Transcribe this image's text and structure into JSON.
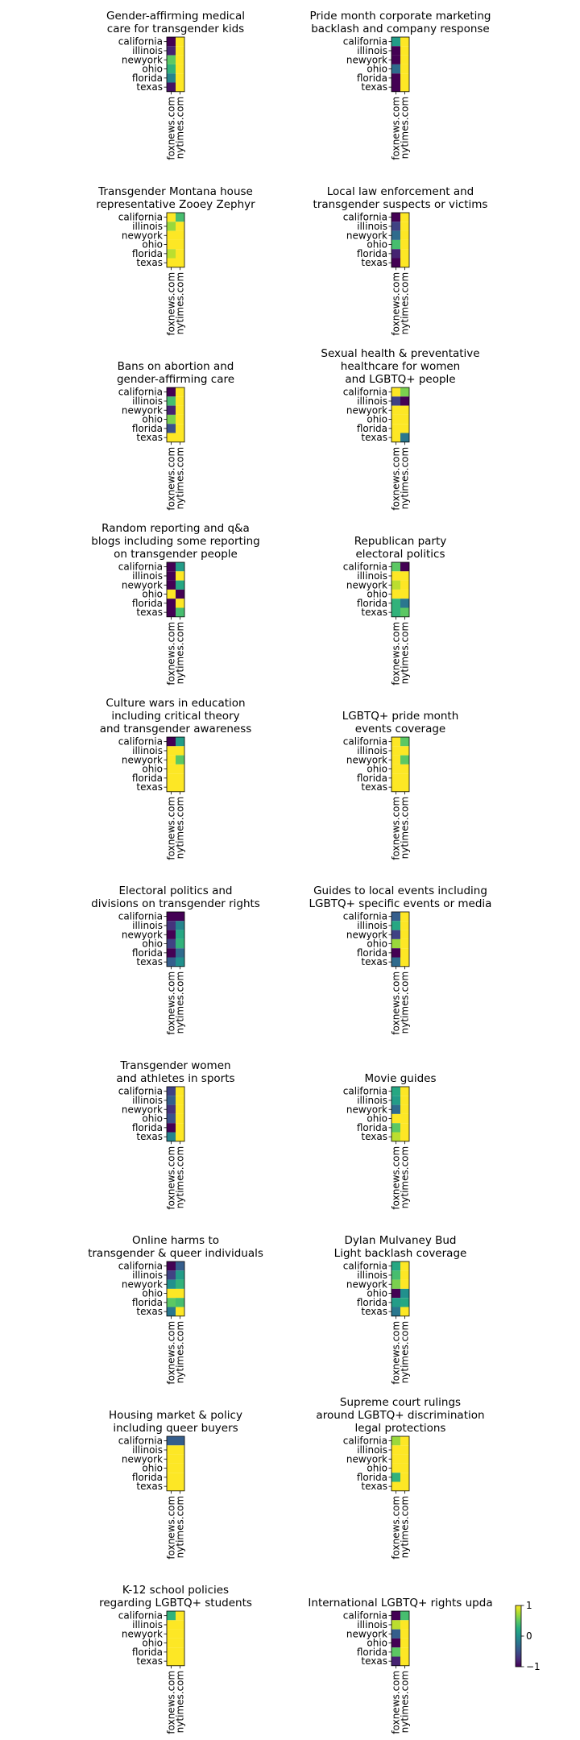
{
  "colorbar": {
    "ticks": [
      1,
      0,
      -1
    ],
    "tick_labels": [
      "1",
      "0",
      "−1"
    ],
    "colormap": "viridis"
  },
  "chart_data": [
    {
      "type": "heatmap",
      "title": [
        "Gender-affirming medical",
        "care for transgender kids"
      ],
      "rows": [
        "california",
        "illinois",
        "newyork",
        "ohio",
        "florida",
        "texas"
      ],
      "columns": [
        "foxnews.com",
        "nytimes.com"
      ],
      "values": [
        [
          -1,
          1
        ],
        [
          -0.8,
          1
        ],
        [
          0.5,
          1
        ],
        [
          0.3,
          1
        ],
        [
          -0.1,
          1
        ],
        [
          -0.9,
          1
        ]
      ],
      "vmin": -1,
      "vmax": 1
    },
    {
      "type": "heatmap",
      "title": [
        "Pride month corporate marketing",
        "backlash and company response"
      ],
      "rows": [
        "california",
        "illinois",
        "newyork",
        "ohio",
        "florida",
        "texas"
      ],
      "columns": [
        "foxnews.com",
        "nytimes.com"
      ],
      "values": [
        [
          0.1,
          1
        ],
        [
          -1,
          1
        ],
        [
          -1,
          1
        ],
        [
          -0.3,
          1
        ],
        [
          -1,
          1
        ],
        [
          -1,
          1
        ]
      ],
      "vmin": -1,
      "vmax": 1
    },
    {
      "type": "heatmap",
      "title": [
        "Transgender Montana house",
        "representative Zooey Zephyr"
      ],
      "rows": [
        "california",
        "illinois",
        "newyork",
        "ohio",
        "florida",
        "texas"
      ],
      "columns": [
        "foxnews.com",
        "nytimes.com"
      ],
      "values": [
        [
          1,
          0.4
        ],
        [
          0.7,
          1
        ],
        [
          1,
          1
        ],
        [
          1,
          1
        ],
        [
          0.8,
          1
        ],
        [
          1,
          1
        ]
      ],
      "vmin": -1,
      "vmax": 1
    },
    {
      "type": "heatmap",
      "title": [
        "Local law enforcement and",
        "transgender suspects or victims"
      ],
      "rows": [
        "california",
        "illinois",
        "newyork",
        "ohio",
        "florida",
        "texas"
      ],
      "columns": [
        "foxnews.com",
        "nytimes.com"
      ],
      "values": [
        [
          -1,
          1
        ],
        [
          -0.6,
          1
        ],
        [
          -0.3,
          1
        ],
        [
          0.4,
          1
        ],
        [
          -0.8,
          1
        ],
        [
          -1,
          1
        ]
      ],
      "vmin": -1,
      "vmax": 1
    },
    {
      "type": "heatmap",
      "title": [
        "Bans on abortion and",
        "gender-affirming care"
      ],
      "rows": [
        "california",
        "illinois",
        "newyork",
        "ohio",
        "florida",
        "texas"
      ],
      "columns": [
        "foxnews.com",
        "nytimes.com"
      ],
      "values": [
        [
          -1,
          1
        ],
        [
          0.4,
          1
        ],
        [
          -0.8,
          1
        ],
        [
          0.6,
          1
        ],
        [
          -0.5,
          1
        ],
        [
          1,
          1
        ]
      ],
      "vmin": -1,
      "vmax": 1
    },
    {
      "type": "heatmap",
      "title": [
        "Sexual health & preventative",
        "healthcare for women",
        "and LGBTQ+ people"
      ],
      "rows": [
        "california",
        "illinois",
        "newyork",
        "ohio",
        "florida",
        "texas"
      ],
      "columns": [
        "foxnews.com",
        "nytimes.com"
      ],
      "values": [
        [
          1,
          0.6
        ],
        [
          -0.6,
          -1
        ],
        [
          1,
          1
        ],
        [
          1,
          1
        ],
        [
          1,
          1
        ],
        [
          1,
          -0.2
        ]
      ],
      "vmin": -1,
      "vmax": 1
    },
    {
      "type": "heatmap",
      "title": [
        "Random reporting and q&a",
        "blogs including some reporting",
        "on transgender people"
      ],
      "rows": [
        "california",
        "illinois",
        "newyork",
        "ohio",
        "florida",
        "texas"
      ],
      "columns": [
        "foxnews.com",
        "nytimes.com"
      ],
      "values": [
        [
          -1,
          0.1
        ],
        [
          -1,
          1
        ],
        [
          -1,
          0.2
        ],
        [
          1,
          -1
        ],
        [
          -1,
          1
        ],
        [
          -1,
          0.4
        ]
      ],
      "vmin": -1,
      "vmax": 1
    },
    {
      "type": "heatmap",
      "title": [
        "Republican party",
        "electoral politics"
      ],
      "rows": [
        "california",
        "illinois",
        "newyork",
        "ohio",
        "florida",
        "texas"
      ],
      "columns": [
        "foxnews.com",
        "nytimes.com"
      ],
      "values": [
        [
          0.5,
          -1
        ],
        [
          1,
          1
        ],
        [
          0.8,
          1
        ],
        [
          1,
          1
        ],
        [
          0.3,
          -0.2
        ],
        [
          0.3,
          0.5
        ]
      ],
      "vmin": -1,
      "vmax": 1
    },
    {
      "type": "heatmap",
      "title": [
        "Culture wars in education",
        "including critical theory",
        "and transgender awareness"
      ],
      "rows": [
        "california",
        "illinois",
        "newyork",
        "ohio",
        "florida",
        "texas"
      ],
      "columns": [
        "foxnews.com",
        "nytimes.com"
      ],
      "values": [
        [
          -1,
          0.1
        ],
        [
          1,
          1
        ],
        [
          1,
          0.5
        ],
        [
          1,
          1
        ],
        [
          1,
          1
        ],
        [
          1,
          1
        ]
      ],
      "vmin": -1,
      "vmax": 1
    },
    {
      "type": "heatmap",
      "title": [
        "LGBTQ+ pride month",
        "events coverage"
      ],
      "rows": [
        "california",
        "illinois",
        "newyork",
        "ohio",
        "florida",
        "texas"
      ],
      "columns": [
        "foxnews.com",
        "nytimes.com"
      ],
      "values": [
        [
          1,
          0.5
        ],
        [
          1,
          1
        ],
        [
          1,
          0.5
        ],
        [
          1,
          1
        ],
        [
          1,
          1
        ],
        [
          1,
          1
        ]
      ],
      "vmin": -1,
      "vmax": 1
    },
    {
      "type": "heatmap",
      "title": [
        "Electoral politics and",
        "divisions on transgender rights"
      ],
      "rows": [
        "california",
        "illinois",
        "newyork",
        "ohio",
        "florida",
        "texas"
      ],
      "columns": [
        "foxnews.com",
        "nytimes.com"
      ],
      "values": [
        [
          -1,
          -1
        ],
        [
          -0.7,
          -0.1
        ],
        [
          -1,
          0.2
        ],
        [
          -0.6,
          0.3
        ],
        [
          -1,
          -0.3
        ],
        [
          -0.4,
          0
        ]
      ],
      "vmin": -1,
      "vmax": 1
    },
    {
      "type": "heatmap",
      "title": [
        "Guides to local events including",
        "LGBTQ+ specific events or media"
      ],
      "rows": [
        "california",
        "illinois",
        "newyork",
        "ohio",
        "florida",
        "texas"
      ],
      "columns": [
        "foxnews.com",
        "nytimes.com"
      ],
      "values": [
        [
          -0.4,
          1
        ],
        [
          0.2,
          1
        ],
        [
          -0.6,
          1
        ],
        [
          0.7,
          1
        ],
        [
          -1,
          1
        ],
        [
          -0.3,
          1
        ]
      ],
      "vmin": -1,
      "vmax": 1
    },
    {
      "type": "heatmap",
      "title": [
        "Transgender women",
        "and athletes in sports"
      ],
      "rows": [
        "california",
        "illinois",
        "newyork",
        "ohio",
        "florida",
        "texas"
      ],
      "columns": [
        "foxnews.com",
        "nytimes.com"
      ],
      "values": [
        [
          -0.6,
          1
        ],
        [
          -0.4,
          1
        ],
        [
          -0.7,
          1
        ],
        [
          -0.5,
          1
        ],
        [
          -1,
          1
        ],
        [
          -0.1,
          1
        ]
      ],
      "vmin": -1,
      "vmax": 1
    },
    {
      "type": "heatmap",
      "title": [
        "Movie guides"
      ],
      "rows": [
        "california",
        "illinois",
        "newyork",
        "ohio",
        "florida",
        "texas"
      ],
      "columns": [
        "foxnews.com",
        "nytimes.com"
      ],
      "values": [
        [
          0.2,
          1
        ],
        [
          0.1,
          1
        ],
        [
          -0.3,
          1
        ],
        [
          1,
          1
        ],
        [
          0.5,
          1
        ],
        [
          0.8,
          1
        ]
      ],
      "vmin": -1,
      "vmax": 1
    },
    {
      "type": "heatmap",
      "title": [
        "Online harms to",
        "transgender & queer individuals"
      ],
      "rows": [
        "california",
        "illinois",
        "newyork",
        "ohio",
        "florida",
        "texas"
      ],
      "columns": [
        "foxnews.com",
        "nytimes.com"
      ],
      "values": [
        [
          -1,
          -0.4
        ],
        [
          -0.6,
          0.1
        ],
        [
          0,
          0.3
        ],
        [
          1,
          1
        ],
        [
          0.5,
          0.4
        ],
        [
          -0.2,
          1
        ]
      ],
      "vmin": -1,
      "vmax": 1
    },
    {
      "type": "heatmap",
      "title": [
        "Dylan Mulvaney Bud",
        "Light backlash coverage"
      ],
      "rows": [
        "california",
        "illinois",
        "newyork",
        "ohio",
        "florida",
        "texas"
      ],
      "columns": [
        "foxnews.com",
        "nytimes.com"
      ],
      "values": [
        [
          0.2,
          1
        ],
        [
          0.4,
          1
        ],
        [
          0.6,
          1
        ],
        [
          -1,
          0
        ],
        [
          0.1,
          0.2
        ],
        [
          -0.2,
          1
        ]
      ],
      "vmin": -1,
      "vmax": 1
    },
    {
      "type": "heatmap",
      "title": [
        "Housing market & policy",
        "including queer buyers"
      ],
      "rows": [
        "california",
        "illinois",
        "newyork",
        "ohio",
        "florida",
        "texas"
      ],
      "columns": [
        "foxnews.com",
        "nytimes.com"
      ],
      "values": [
        [
          -0.4,
          -0.4
        ],
        [
          1,
          1
        ],
        [
          1,
          1
        ],
        [
          1,
          1
        ],
        [
          1,
          1
        ],
        [
          1,
          1
        ]
      ],
      "vmin": -1,
      "vmax": 1
    },
    {
      "type": "heatmap",
      "title": [
        "Supreme court rulings",
        "around LGBTQ+ discrimination",
        "legal protections"
      ],
      "rows": [
        "california",
        "illinois",
        "newyork",
        "ohio",
        "florida",
        "texas"
      ],
      "columns": [
        "foxnews.com",
        "nytimes.com"
      ],
      "values": [
        [
          0.7,
          1
        ],
        [
          1,
          1
        ],
        [
          1,
          1
        ],
        [
          1,
          1
        ],
        [
          0.3,
          1
        ],
        [
          1,
          1
        ]
      ],
      "vmin": -1,
      "vmax": 1
    },
    {
      "type": "heatmap",
      "title": [
        "K-12 school policies",
        "regarding LGBTQ+ students"
      ],
      "rows": [
        "california",
        "illinois",
        "newyork",
        "ohio",
        "florida",
        "texas"
      ],
      "columns": [
        "foxnews.com",
        "nytimes.com"
      ],
      "values": [
        [
          0.3,
          1
        ],
        [
          1,
          1
        ],
        [
          1,
          1
        ],
        [
          1,
          1
        ],
        [
          1,
          1
        ],
        [
          1,
          1
        ]
      ],
      "vmin": -1,
      "vmax": 1
    },
    {
      "type": "heatmap",
      "title": [
        "International LGBTQ+ rights upda"
      ],
      "rows": [
        "california",
        "illinois",
        "newyork",
        "ohio",
        "florida",
        "texas"
      ],
      "columns": [
        "foxnews.com",
        "nytimes.com"
      ],
      "values": [
        [
          -1,
          0.4
        ],
        [
          0.8,
          1
        ],
        [
          -0.4,
          1
        ],
        [
          -1,
          1
        ],
        [
          0.5,
          1
        ],
        [
          -0.8,
          1
        ]
      ],
      "vmin": -1,
      "vmax": 1
    }
  ]
}
